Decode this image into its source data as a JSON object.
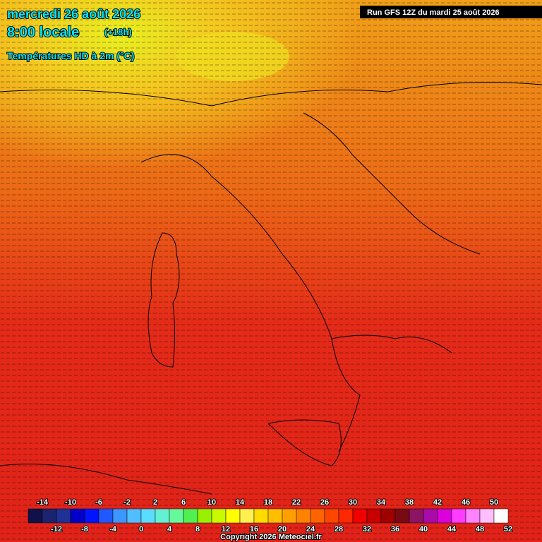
{
  "header": {
    "date": "mercredi 26 août 2026",
    "time": "8:00 locale",
    "offset": "(+18h)",
    "field": "Températures HD à 2m (°C)",
    "run": "Run GFS 12Z du mardi 25 août 2026"
  },
  "legend": {
    "colors": [
      "#10104a",
      "#1c2470",
      "#1e3296",
      "#0000c8",
      "#0014ff",
      "#1e5aff",
      "#3c96ff",
      "#50beff",
      "#5adcff",
      "#64f0d2",
      "#64fa9b",
      "#50f050",
      "#96f000",
      "#c8fa00",
      "#ffff00",
      "#fff050",
      "#ffdc00",
      "#ffbe00",
      "#ffa000",
      "#ff8200",
      "#ff6400",
      "#ff4600",
      "#ff2800",
      "#f00000",
      "#c80000",
      "#a00000",
      "#780a14",
      "#8c1464",
      "#aa0aaa",
      "#dc00dc",
      "#ff3cff",
      "#ff82ff",
      "#ffbeff",
      "#ffffff"
    ],
    "top_labels": [
      "-14",
      "-10",
      "-6",
      "-2",
      "2",
      "6",
      "10",
      "14",
      "18",
      "22",
      "26",
      "30",
      "34",
      "38",
      "42",
      "46",
      "50"
    ],
    "bottom_labels": [
      "-12",
      "-8",
      "-4",
      "0",
      "4",
      "8",
      "12",
      "16",
      "20",
      "24",
      "28",
      "32",
      "36",
      "40",
      "44",
      "48",
      "52"
    ]
  },
  "footer": {
    "copyright": "Copyright 2026 Meteociel.fr"
  }
}
